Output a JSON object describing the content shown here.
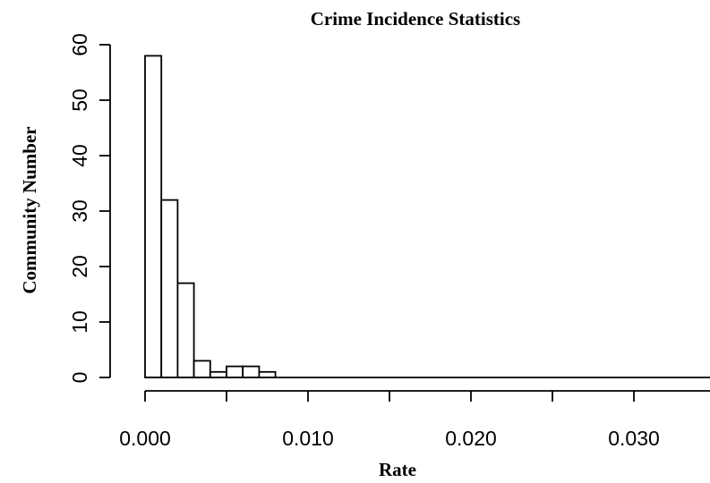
{
  "chart_data": {
    "type": "bar",
    "title": "Crime Incidence Statistics",
    "xlabel": "Rate",
    "ylabel": "Community Number",
    "bin_width": 0.001,
    "bins": [
      {
        "start": 0.0,
        "end": 0.001,
        "count": 58
      },
      {
        "start": 0.001,
        "end": 0.002,
        "count": 32
      },
      {
        "start": 0.002,
        "end": 0.003,
        "count": 17
      },
      {
        "start": 0.003,
        "end": 0.004,
        "count": 3
      },
      {
        "start": 0.004,
        "end": 0.005,
        "count": 1
      },
      {
        "start": 0.005,
        "end": 0.006,
        "count": 2
      },
      {
        "start": 0.006,
        "end": 0.007,
        "count": 2
      },
      {
        "start": 0.007,
        "end": 0.008,
        "count": 1
      },
      {
        "start": 0.008,
        "end": 0.009,
        "count": 0
      },
      {
        "start": 0.009,
        "end": 0.01,
        "count": 0
      },
      {
        "start": 0.01,
        "end": 0.011,
        "count": 0
      },
      {
        "start": 0.011,
        "end": 0.012,
        "count": 0
      },
      {
        "start": 0.012,
        "end": 0.013,
        "count": 0
      },
      {
        "start": 0.013,
        "end": 0.014,
        "count": 0
      },
      {
        "start": 0.014,
        "end": 0.015,
        "count": 0
      },
      {
        "start": 0.015,
        "end": 0.016,
        "count": 0
      },
      {
        "start": 0.016,
        "end": 0.017,
        "count": 0
      },
      {
        "start": 0.017,
        "end": 0.018,
        "count": 0
      },
      {
        "start": 0.018,
        "end": 0.019,
        "count": 0
      },
      {
        "start": 0.019,
        "end": 0.02,
        "count": 0
      },
      {
        "start": 0.02,
        "end": 0.021,
        "count": 0
      },
      {
        "start": 0.021,
        "end": 0.022,
        "count": 0
      },
      {
        "start": 0.022,
        "end": 0.023,
        "count": 0
      },
      {
        "start": 0.023,
        "end": 0.024,
        "count": 0
      },
      {
        "start": 0.024,
        "end": 0.025,
        "count": 0
      },
      {
        "start": 0.025,
        "end": 0.026,
        "count": 0
      },
      {
        "start": 0.026,
        "end": 0.027,
        "count": 0
      },
      {
        "start": 0.027,
        "end": 0.028,
        "count": 0
      },
      {
        "start": 0.028,
        "end": 0.029,
        "count": 0
      },
      {
        "start": 0.029,
        "end": 0.03,
        "count": 0
      },
      {
        "start": 0.03,
        "end": 0.031,
        "count": 0
      },
      {
        "start": 0.031,
        "end": 0.032,
        "count": 0
      },
      {
        "start": 0.032,
        "end": 0.033,
        "count": 0
      },
      {
        "start": 0.033,
        "end": 0.034,
        "count": 0
      },
      {
        "start": 0.034,
        "end": 0.035,
        "count": 0
      }
    ],
    "x_ticks": [
      {
        "value": 0.0,
        "label": "0.000"
      },
      {
        "value": 0.005,
        "label": ""
      },
      {
        "value": 0.01,
        "label": "0.010"
      },
      {
        "value": 0.015,
        "label": ""
      },
      {
        "value": 0.02,
        "label": "0.020"
      },
      {
        "value": 0.025,
        "label": ""
      },
      {
        "value": 0.03,
        "label": "0.030"
      },
      {
        "value": 0.035,
        "label": ""
      }
    ],
    "y_ticks": [
      0,
      10,
      20,
      30,
      40,
      50,
      60
    ],
    "xlim": [
      0.0,
      0.035
    ],
    "ylim": [
      0,
      60
    ],
    "grid": false,
    "legend": "none",
    "bar_fill": "#ffffff",
    "bar_stroke": "#000000"
  }
}
